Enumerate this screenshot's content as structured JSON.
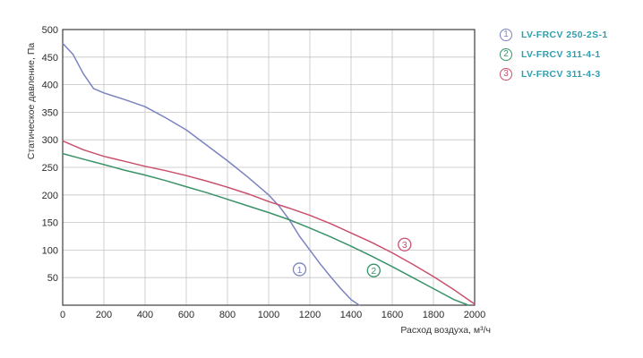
{
  "chart_data": {
    "type": "line",
    "xlabel": "Расход воздуха, м³/ч",
    "ylabel": "Статическое давление, Па",
    "xlim": [
      0,
      2000
    ],
    "ylim": [
      0,
      500
    ],
    "x_ticks": [
      "0",
      "200",
      "400",
      "600",
      "800",
      "1000",
      "1200",
      "1400",
      "1600",
      "1800",
      "2000"
    ],
    "y_ticks": [
      "50",
      "100",
      "150",
      "200",
      "250",
      "300",
      "350",
      "400",
      "450",
      "500"
    ],
    "grid": true,
    "legend_position": "right",
    "series": [
      {
        "name": "LV-FRCV 250-2S-1",
        "marker": "1",
        "color": "#7b83c0",
        "label_at": [
          1150,
          65
        ],
        "x": [
          0,
          50,
          100,
          150,
          200,
          300,
          400,
          500,
          600,
          700,
          800,
          900,
          1000,
          1050,
          1100,
          1150,
          1200,
          1250,
          1300,
          1350,
          1400,
          1440
        ],
        "y": [
          475,
          455,
          420,
          393,
          385,
          373,
          360,
          340,
          318,
          290,
          262,
          232,
          200,
          180,
          155,
          125,
          100,
          75,
          52,
          30,
          10,
          0
        ]
      },
      {
        "name": "LV-FRCV 311-4-1",
        "marker": "2",
        "color": "#3a9268",
        "label_at": [
          1510,
          63
        ],
        "x": [
          0,
          100,
          200,
          300,
          400,
          500,
          600,
          700,
          800,
          900,
          1000,
          1100,
          1200,
          1300,
          1400,
          1500,
          1600,
          1700,
          1800,
          1900,
          1970
        ],
        "y": [
          275,
          265,
          255,
          245,
          236,
          226,
          215,
          204,
          192,
          180,
          168,
          155,
          140,
          124,
          107,
          89,
          70,
          50,
          30,
          10,
          0
        ]
      },
      {
        "name": "LV-FRCV 311-4-3",
        "marker": "3",
        "color": "#c9506c",
        "label_at": [
          1660,
          110
        ],
        "x": [
          0,
          100,
          200,
          300,
          400,
          500,
          600,
          700,
          800,
          900,
          1000,
          1100,
          1200,
          1300,
          1400,
          1500,
          1600,
          1700,
          1800,
          1900,
          2000
        ],
        "y": [
          298,
          282,
          270,
          261,
          252,
          244,
          235,
          225,
          214,
          202,
          188,
          176,
          163,
          148,
          131,
          114,
          95,
          74,
          52,
          28,
          2
        ]
      }
    ]
  }
}
